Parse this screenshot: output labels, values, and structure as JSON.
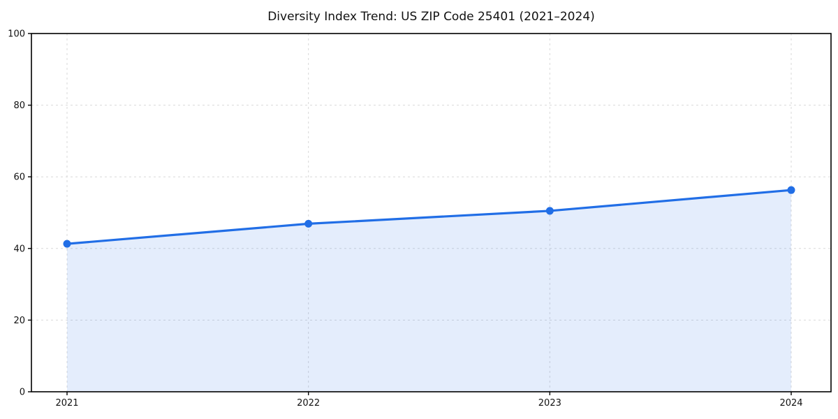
{
  "chart_data": {
    "type": "area",
    "title": "Diversity Index Trend: US ZIP Code 25401 (2021–2024)",
    "categories": [
      "2021",
      "2022",
      "2023",
      "2024"
    ],
    "values": [
      41.3,
      46.9,
      50.5,
      56.3
    ],
    "series_name": "Diversity Index",
    "xlabel": "",
    "ylabel": "",
    "ylim": [
      0,
      100
    ],
    "yticks": [
      0,
      20,
      40,
      60,
      80,
      100
    ],
    "grid": true,
    "legend": "none",
    "line_color": "#216ee6",
    "marker_color": "#216ee6",
    "fill_opacity": 0.12,
    "grid_color": "#d9d9d9",
    "axis_color": "#000000",
    "text_color": "#111111",
    "background_color": "#ffffff"
  }
}
